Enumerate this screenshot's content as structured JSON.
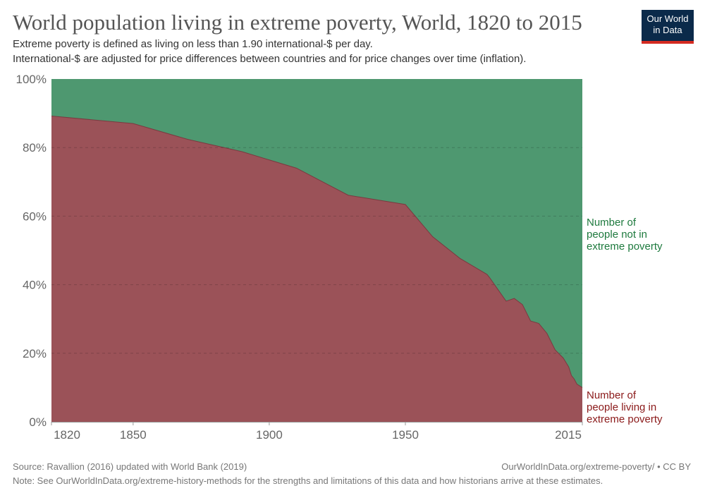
{
  "header": {
    "title": "World population living in extreme poverty, World, 1820 to 2015",
    "subtitle_line1": "Extreme poverty is defined as living on less than 1.90 international-$ per day.",
    "subtitle_line2": "International-$ are adjusted for price differences between countries and for price changes over time (inflation).",
    "logo_line1": "Our World",
    "logo_line2": "in Data"
  },
  "footer": {
    "source": "Source: Ravallion (2016) updated with World Bank (2019)",
    "url": "OurWorldInData.org/extreme-poverty/ • CC BY",
    "note": "Note: See OurWorldInData.org/extreme-history-methods for the strengths and limitations of this data and how historians arrive at these estimates."
  },
  "colors": {
    "poverty": "#9b5258",
    "not_poverty": "#4e9870",
    "poverty_label": "#8b1a1a",
    "not_poverty_label": "#1e7a3e",
    "brand": "#0b2a4a",
    "brand_accent": "#d42b21"
  },
  "chart_data": {
    "type": "area",
    "stacked": true,
    "percent": true,
    "title": "World population living in extreme poverty, World, 1820 to 2015",
    "xlim": [
      1820,
      2015
    ],
    "ylim": [
      0,
      100
    ],
    "x_ticks": [
      "1820",
      "1850",
      "1900",
      "1950",
      "2015"
    ],
    "y_ticks": [
      "0%",
      "20%",
      "40%",
      "60%",
      "80%",
      "100%"
    ],
    "grid": true,
    "legend": "right, inline labels",
    "x": [
      1820,
      1850,
      1870,
      1890,
      1910,
      1929,
      1950,
      1960,
      1970,
      1980,
      1981,
      1984,
      1987,
      1990,
      1993,
      1996,
      1999,
      2002,
      2005,
      2008,
      2010,
      2011,
      2012,
      2013,
      2015
    ],
    "series": [
      {
        "name": "Number of people living in extreme poverty",
        "values": [
          89.2,
          87.0,
          82.4,
          78.8,
          74.0,
          66.1,
          63.4,
          54.0,
          47.7,
          43.0,
          42.0,
          38.6,
          35.2,
          36.0,
          34.2,
          29.4,
          28.7,
          25.8,
          21.0,
          18.6,
          16.0,
          13.5,
          12.5,
          11.0,
          10.0
        ]
      },
      {
        "name": "Number of people not in extreme poverty",
        "values": [
          10.8,
          13.0,
          17.6,
          21.2,
          26.0,
          33.9,
          36.6,
          46.0,
          52.3,
          57.0,
          58.0,
          61.4,
          64.8,
          64.0,
          65.8,
          70.6,
          71.3,
          74.2,
          79.0,
          81.4,
          84.0,
          86.5,
          87.5,
          89.0,
          90.0
        ]
      }
    ],
    "labels": {
      "poverty": [
        "Number of",
        "people living in",
        "extreme poverty"
      ],
      "not_poverty": [
        "Number of",
        "people not in",
        "extreme poverty"
      ]
    }
  }
}
